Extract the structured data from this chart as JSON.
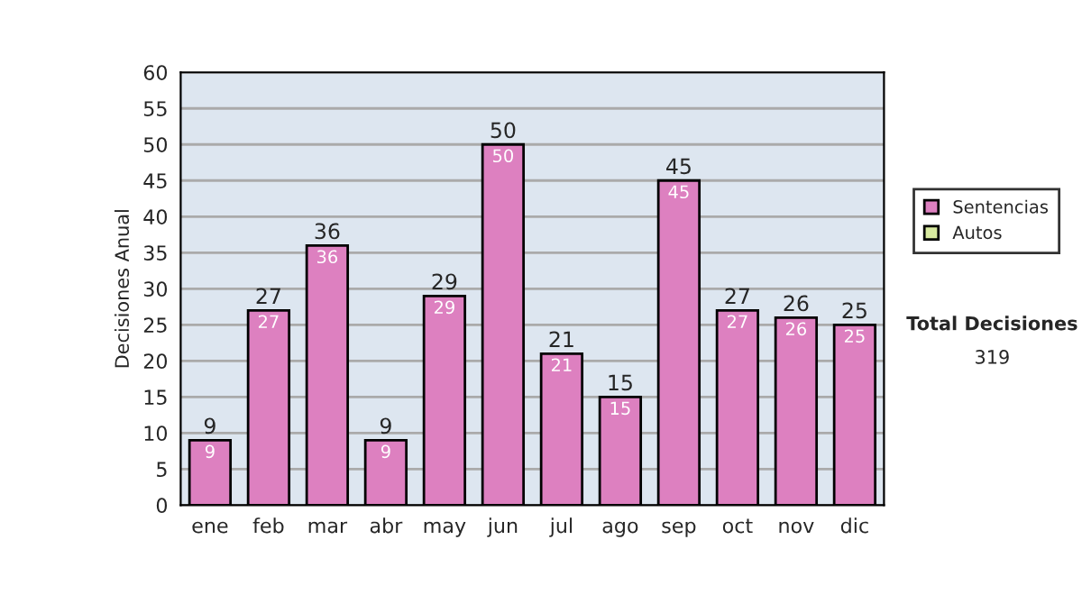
{
  "chart_data": {
    "type": "bar",
    "stacked": true,
    "ylabel": "Decisiones Anual",
    "categories": [
      "ene",
      "feb",
      "mar",
      "abr",
      "may",
      "jun",
      "jul",
      "ago",
      "sep",
      "oct",
      "nov",
      "dic"
    ],
    "series": [
      {
        "name": "Sentencias",
        "color": "#dd80c0",
        "values": [
          9,
          27,
          36,
          9,
          29,
          50,
          21,
          15,
          45,
          27,
          26,
          25
        ],
        "value_labels": [
          "9",
          "27",
          "36",
          "9",
          "29",
          "50",
          "21",
          "15",
          "45",
          "27",
          "26",
          "25"
        ]
      },
      {
        "name": "Autos",
        "color": "#d8eaa0",
        "values": [
          0,
          0,
          0,
          0,
          0,
          0,
          0,
          0,
          0,
          0,
          0,
          0
        ]
      }
    ],
    "totals": [
      "9",
      "27",
      "36",
      "9",
      "29",
      "50",
      "21",
      "15",
      "45",
      "27",
      "26",
      "25"
    ],
    "ylim": [
      0,
      60
    ],
    "yticks": [
      0,
      5,
      10,
      15,
      20,
      25,
      30,
      35,
      40,
      45,
      50,
      55,
      60
    ],
    "grid": "y",
    "legend": "right",
    "annotations": [
      "Total Decisiones",
      "319"
    ]
  }
}
